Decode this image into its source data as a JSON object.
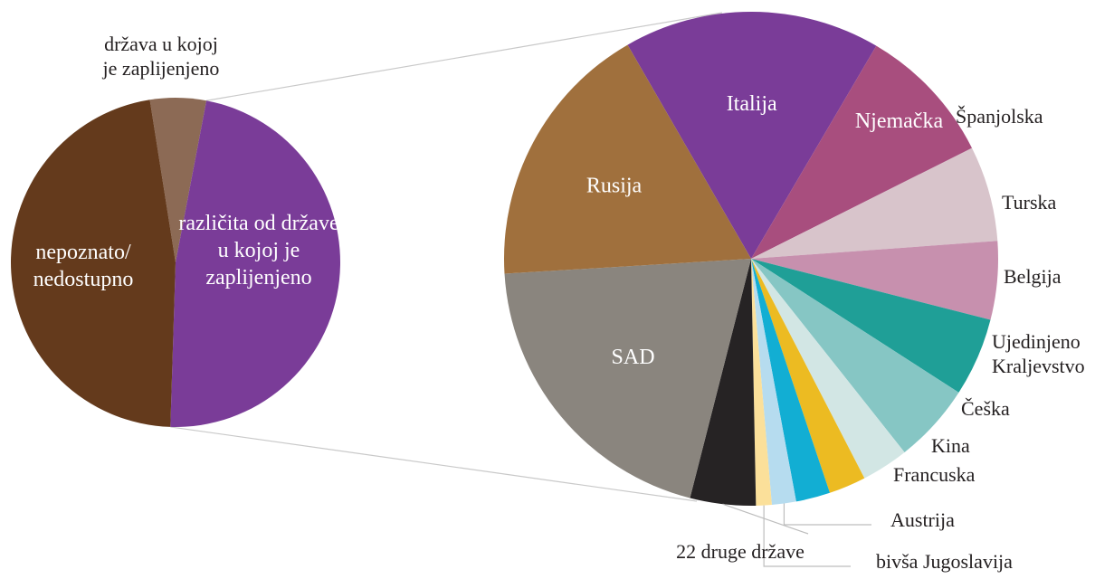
{
  "chart_data": [
    {
      "type": "pie",
      "title": "",
      "slices": [
        {
          "label": "država u kojoj je zaplijenjeno",
          "value": 5.5,
          "color": "#8c6a55"
        },
        {
          "label": "različita od države u kojoj je zaplijenjeno",
          "value": 47.5,
          "color": "#7a3c98"
        },
        {
          "label": "nepoznato/ nedostupno",
          "value": 47.0,
          "color": "#643a1c"
        }
      ]
    },
    {
      "type": "pie",
      "title": "",
      "slices": [
        {
          "label": "Italija",
          "value": 18.0,
          "color": "#7a3c98"
        },
        {
          "label": "Njemačka",
          "value": 9.8,
          "color": "#a84e7e"
        },
        {
          "label": "Španjolska",
          "value": 6.7,
          "color": "#d8c4cb"
        },
        {
          "label": "Turska",
          "value": 5.5,
          "color": "#c790ae"
        },
        {
          "label": "Belgija",
          "value": 5.5,
          "color": "#1f9f97"
        },
        {
          "label": "Ujedinjeno Kraljevstvo",
          "value": 5.6,
          "color": "#86c6c4"
        },
        {
          "label": "Češka",
          "value": 3.3,
          "color": "#d2e6e4"
        },
        {
          "label": "Kina",
          "value": 2.6,
          "color": "#ecbb22"
        },
        {
          "label": "Francuska",
          "value": 2.4,
          "color": "#12aed3"
        },
        {
          "label": "Austrija",
          "value": 1.7,
          "color": "#b6dcef"
        },
        {
          "label": "bivša Jugoslavija",
          "value": 1.1,
          "color": "#fbe09a"
        },
        {
          "label": "22 druge države",
          "value": 4.6,
          "color": "#262324"
        },
        {
          "label": "SAD",
          "value": 21.5,
          "color": "#8a857e"
        },
        {
          "label": "Rusija",
          "value": 18.9,
          "color": "#a0703d"
        }
      ]
    }
  ]
}
